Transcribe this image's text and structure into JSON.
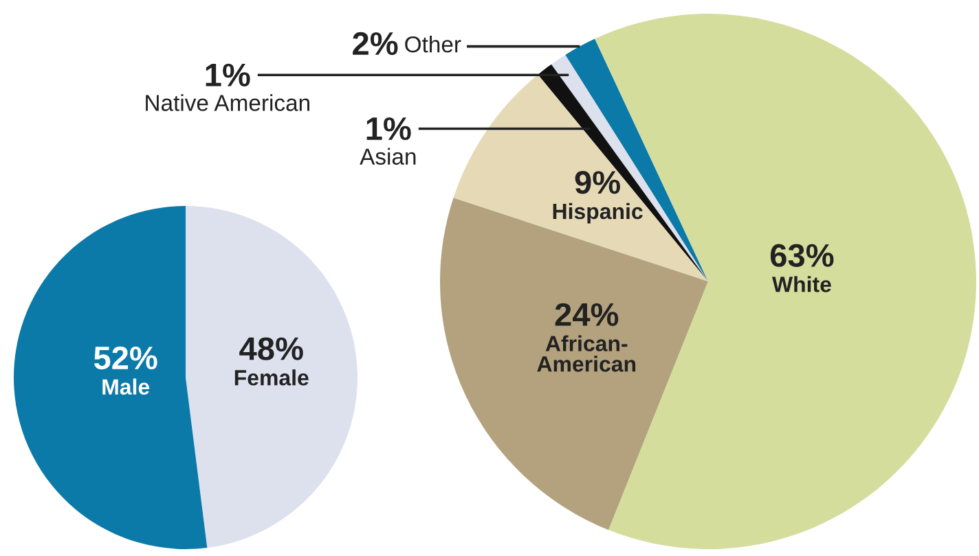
{
  "chart_data": [
    {
      "type": "pie",
      "categories": [
        "Female",
        "Male"
      ],
      "values": [
        48,
        52
      ],
      "colors": [
        "#dde1ee",
        "#0b7aa8"
      ],
      "value_labels": [
        "48%",
        "52%"
      ]
    },
    {
      "type": "pie",
      "categories": [
        "Other",
        "Native American",
        "Asian",
        "Hispanic",
        "African-\nAmerican",
        "White"
      ],
      "values": [
        2,
        1,
        1,
        9,
        24,
        63
      ],
      "colors": [
        "#0b7aa8",
        "#dde1ee",
        "#111111",
        "#e6d9b6",
        "#b3a27d",
        "#d4dd9c"
      ],
      "value_labels": [
        "2%",
        "1%",
        "1%",
        "9%",
        "24%",
        "63%"
      ]
    }
  ]
}
